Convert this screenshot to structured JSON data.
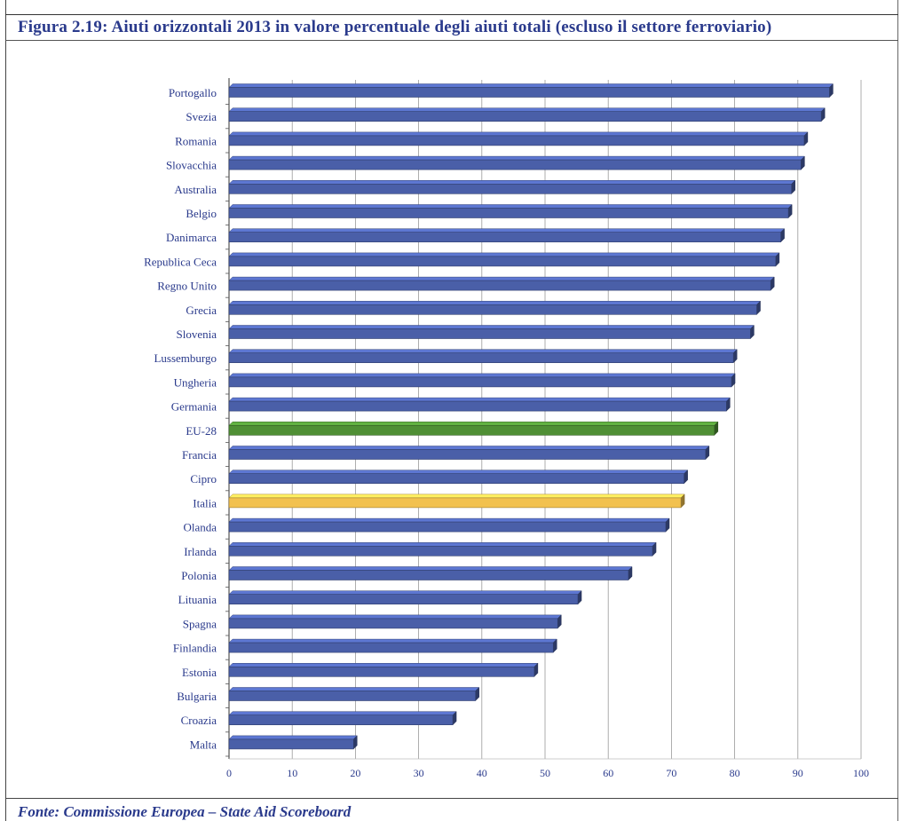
{
  "figure": {
    "title": "Figura 2.19: Aiuti orizzontali 2013 in valore percentuale degli aiuti totali (escluso il settore ferroviario)",
    "source": "Fonte: Commissione Europea – State Aid Scoreboard"
  },
  "colors": {
    "bar_default": "#4a5fa8",
    "bar_eu": "#4f8f35",
    "bar_italy": "#f2c14e",
    "label": "#2a3a8c",
    "axis": "#555555"
  },
  "chart_data": {
    "type": "bar",
    "orientation": "horizontal",
    "title": "",
    "xlabel": "",
    "ylabel": "",
    "xlim": [
      0,
      100
    ],
    "x_ticks": [
      0,
      10,
      20,
      30,
      40,
      50,
      60,
      70,
      80,
      90,
      100
    ],
    "grid": true,
    "legend": "none",
    "categories": [
      "Portogallo",
      "Svezia",
      "Romania",
      "Slovacchia",
      "Australia",
      "Belgio",
      "Danimarca",
      "Republica Ceca",
      "Regno Unito",
      "Grecia",
      "Slovenia",
      "Lussemburgo",
      "Ungheria",
      "Germania",
      "EU-28",
      "Francia",
      "Cipro",
      "Italia",
      "Olanda",
      "Irlanda",
      "Polonia",
      "Lituania",
      "Spagna",
      "Finlandia",
      "Estonia",
      "Bulgaria",
      "Croazia",
      "Malta"
    ],
    "values": [
      95,
      93.7,
      91,
      90.5,
      89,
      88.5,
      87.3,
      86.5,
      85.7,
      83.5,
      82.5,
      79.8,
      79.5,
      78.7,
      76.8,
      75.4,
      72,
      71.5,
      69.1,
      67,
      63.2,
      55.2,
      52,
      51.3,
      48.3,
      39,
      35.4,
      19.7
    ],
    "highlight": {
      "EU-28": "bar_eu",
      "Italia": "bar_italy"
    }
  }
}
